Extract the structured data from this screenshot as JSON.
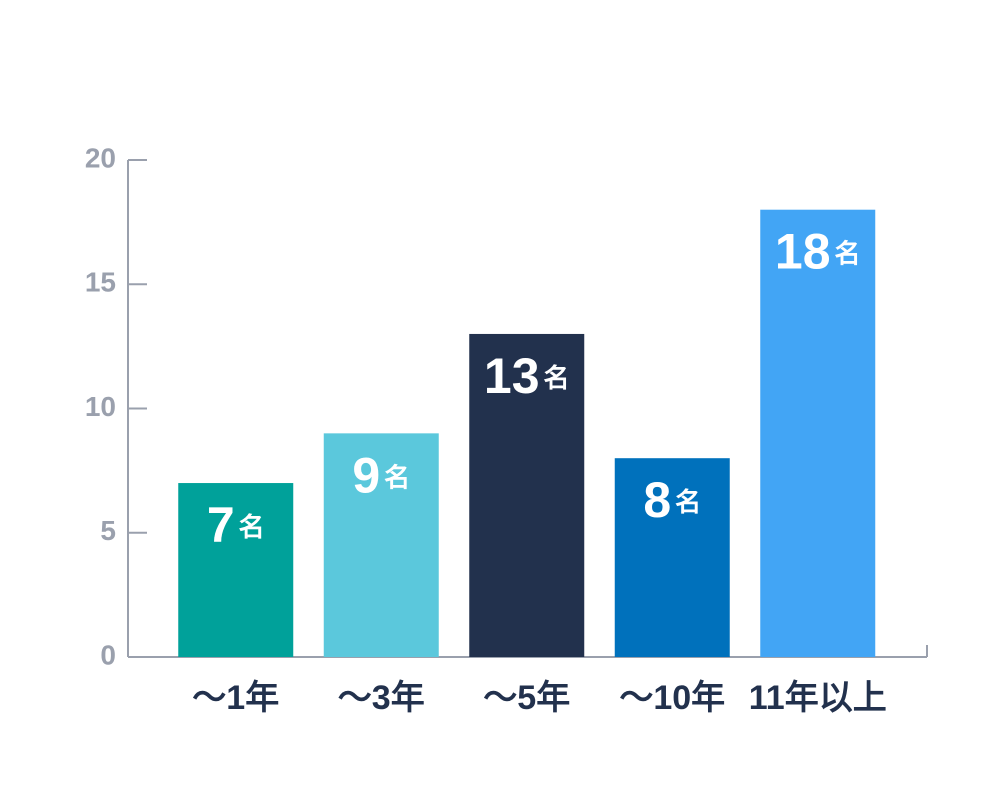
{
  "chart_data": {
    "type": "bar",
    "categories": [
      "～1年",
      "～3年",
      "～5年",
      "～10年",
      "11年以上"
    ],
    "values": [
      7,
      9,
      13,
      8,
      18
    ],
    "value_labels": [
      "7名",
      "9名",
      "13名",
      "8名",
      "18名"
    ],
    "colors": [
      "#00a19a",
      "#5bc8dc",
      "#22314d",
      "#0071bc",
      "#42a5f5"
    ],
    "ylim": [
      0,
      20
    ],
    "yticks": [
      0,
      5,
      10,
      15,
      20
    ],
    "grid": false
  }
}
